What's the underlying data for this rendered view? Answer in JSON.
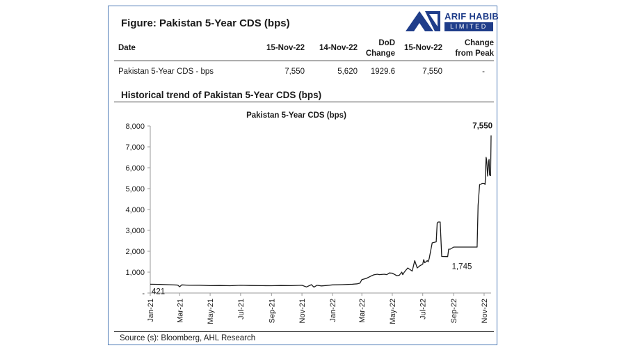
{
  "figure_title": "Figure: Pakistan 5-Year CDS (bps)",
  "logo": {
    "name": "ARIF HABIB",
    "sub": "LIMITED",
    "brand_color": "#1f3d8a"
  },
  "table": {
    "headers": [
      "Date",
      "15-Nov-22",
      "14-Nov-22",
      "DoD\nChange",
      "15-Nov-22",
      "Change\nfrom Peak"
    ],
    "row": [
      "Pakistan 5-Year CDS - bps",
      "7,550",
      "5,620",
      "1929.6",
      "7,550",
      "-"
    ]
  },
  "section_title": "Historical trend of Pakistan 5-Year CDS (bps)",
  "source": "Source (s): Bloomberg, AHL  Research",
  "chart_data": {
    "type": "line",
    "title": "Pakistan 5-Year CDS (bps)",
    "xlabel": "",
    "ylabel": "",
    "ylim": [
      0,
      8000
    ],
    "yticks": [
      0,
      1000,
      2000,
      3000,
      4000,
      5000,
      6000,
      7000,
      8000
    ],
    "ytick_labels": [
      "-",
      "1,000",
      "2,000",
      "3,000",
      "4,000",
      "5,000",
      "6,000",
      "7,000",
      "8,000"
    ],
    "xlim": [
      "2021-01-01",
      "2022-11-15"
    ],
    "xticks": [
      "2021-01-01",
      "2021-03-01",
      "2021-05-01",
      "2021-07-01",
      "2021-09-01",
      "2021-11-01",
      "2022-01-01",
      "2022-03-01",
      "2022-05-01",
      "2022-07-01",
      "2022-09-01",
      "2022-11-01"
    ],
    "xtick_labels": [
      "Jan-21",
      "Mar-21",
      "May-21",
      "Jul-21",
      "Sep-21",
      "Nov-21",
      "Jan-22",
      "Mar-22",
      "May-22",
      "Jul-22",
      "Sep-22",
      "Nov-22"
    ],
    "grid": false,
    "line_color": "#1a1a1a",
    "series": [
      {
        "x": [
          "2021-01-01",
          "2021-01-20",
          "2021-02-10",
          "2021-02-25",
          "2021-03-01",
          "2021-03-05",
          "2021-03-20",
          "2021-04-10",
          "2021-05-01",
          "2021-05-20",
          "2021-06-10",
          "2021-07-01",
          "2021-07-20",
          "2021-08-10",
          "2021-09-01",
          "2021-09-20",
          "2021-10-10",
          "2021-11-01",
          "2021-11-10",
          "2021-11-20",
          "2021-11-25",
          "2021-12-01",
          "2021-12-10",
          "2021-12-20",
          "2022-01-01",
          "2022-01-20",
          "2022-02-10",
          "2022-02-20",
          "2022-02-25",
          "2022-03-01",
          "2022-03-10",
          "2022-03-20",
          "2022-03-25",
          "2022-04-01",
          "2022-04-05",
          "2022-04-15",
          "2022-04-20",
          "2022-04-25",
          "2022-05-01",
          "2022-05-10",
          "2022-05-15",
          "2022-05-20",
          "2022-05-22",
          "2022-05-25",
          "2022-06-01",
          "2022-06-10",
          "2022-06-15",
          "2022-06-20",
          "2022-06-25",
          "2022-07-01",
          "2022-07-03",
          "2022-07-05",
          "2022-07-10",
          "2022-07-12",
          "2022-07-14",
          "2022-07-20",
          "2022-07-28",
          "2022-07-30",
          "2022-08-01",
          "2022-08-05",
          "2022-08-08",
          "2022-08-20",
          "2022-08-22",
          "2022-08-25",
          "2022-09-01",
          "2022-09-15",
          "2022-10-01",
          "2022-10-15",
          "2022-10-18",
          "2022-10-20",
          "2022-10-23",
          "2022-10-25",
          "2022-10-28",
          "2022-11-01",
          "2022-11-03",
          "2022-11-05",
          "2022-11-06",
          "2022-11-08",
          "2022-11-10",
          "2022-11-11",
          "2022-11-12",
          "2022-11-14",
          "2022-11-15"
        ],
        "y": [
          421,
          415,
          395,
          380,
          300,
          390,
          370,
          375,
          355,
          360,
          350,
          370,
          360,
          355,
          350,
          360,
          355,
          370,
          290,
          400,
          280,
          370,
          340,
          360,
          390,
          400,
          420,
          440,
          470,
          640,
          700,
          820,
          870,
          900,
          880,
          900,
          880,
          960,
          950,
          830,
          850,
          1000,
          880,
          1000,
          1200,
          1050,
          1550,
          1200,
          1300,
          1380,
          1600,
          1450,
          1550,
          1500,
          1650,
          2400,
          2450,
          3350,
          3400,
          3400,
          1750,
          1745,
          2100,
          2100,
          2200,
          2200,
          2200,
          2200,
          2200,
          4200,
          5200,
          5200,
          5250,
          5250,
          5200,
          6500,
          6400,
          5600,
          6300,
          6400,
          5650,
          5620,
          7550
        ]
      }
    ],
    "annotations": [
      {
        "x": "2021-01-01",
        "y": 421,
        "label": "421"
      },
      {
        "x": "2022-08-20",
        "y": 1745,
        "label": "1,745"
      },
      {
        "x": "2022-11-15",
        "y": 7550,
        "label": "7,550"
      }
    ]
  }
}
